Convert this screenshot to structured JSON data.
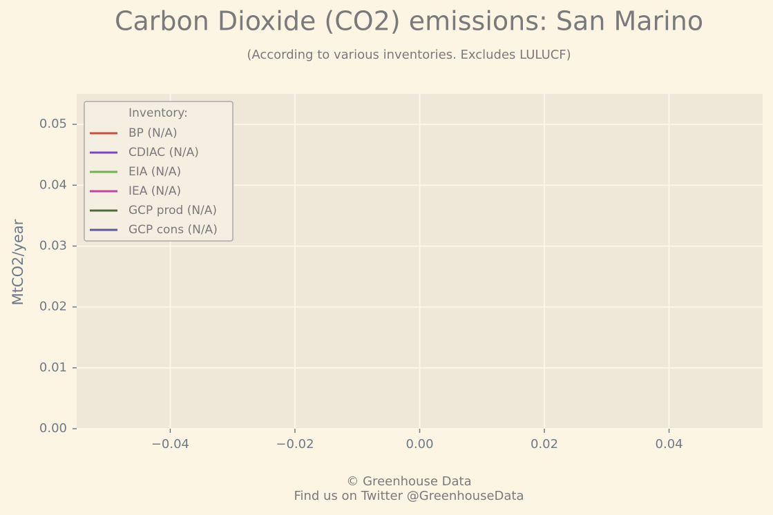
{
  "chart_data": {
    "type": "line",
    "title": "Carbon Dioxide (CO2) emissions: San Marino",
    "subtitle": "(According to various inventories. Excludes LULUCF)",
    "y_label": "MtCO2/year",
    "footer": [
      "© Greenhouse Data",
      "Find us on Twitter @GreenhouseData"
    ],
    "legend_title": "Inventory:",
    "legend": "upper left",
    "grid": true,
    "x": [],
    "series": [
      {
        "name": "BP (N/A)",
        "color": "#cc4c3c",
        "values": []
      },
      {
        "name": "CDIAC (N/A)",
        "color": "#7b44c8",
        "values": []
      },
      {
        "name": "EIA (N/A)",
        "color": "#6db352",
        "values": []
      },
      {
        "name": "IEA (N/A)",
        "color": "#c441a8",
        "values": []
      },
      {
        "name": "GCP prod (N/A)",
        "color": "#4e6b3a",
        "values": []
      },
      {
        "name": "GCP cons (N/A)",
        "color": "#5a5a9c",
        "values": []
      }
    ],
    "xlim": [
      -0.055,
      0.055
    ],
    "xticks": [
      {
        "value": -0.04,
        "label": "−0.04"
      },
      {
        "value": -0.02,
        "label": "−0.02"
      },
      {
        "value": 0,
        "label": "0.00"
      },
      0.02,
      0.04
    ],
    "ylim": [
      0,
      0.055
    ],
    "yticks": [
      {
        "value": 0,
        "label": "0.00"
      },
      0.01,
      0.02,
      0.03,
      0.04,
      0.05
    ]
  }
}
